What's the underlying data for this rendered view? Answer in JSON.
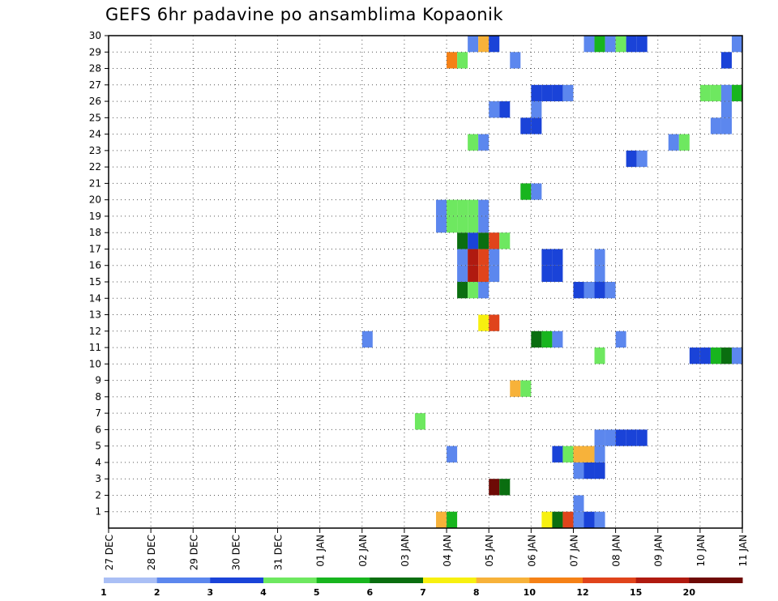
{
  "chart_data": {
    "type": "heatmap",
    "title": "GEFS 6hr padavine po ansamblima Kopaonik",
    "x_tick_labels": [
      "27 DEC",
      "28 DEC",
      "29 DEC",
      "30 DEC",
      "31 DEC",
      "01 JAN",
      "02 JAN",
      "03 JAN",
      "04 JAN",
      "05 JAN",
      "06 JAN",
      "07 JAN",
      "08 JAN",
      "09 JAN",
      "10 JAN",
      "11 JAN"
    ],
    "y_tick_labels": [
      "1",
      "2",
      "3",
      "4",
      "5",
      "6",
      "7",
      "8",
      "9",
      "10",
      "11",
      "12",
      "13",
      "14",
      "15",
      "16",
      "17",
      "18",
      "19",
      "20",
      "21",
      "22",
      "23",
      "24",
      "25",
      "26",
      "27",
      "28",
      "29",
      "30"
    ],
    "xlim_days": [
      0,
      15
    ],
    "ylim": [
      0,
      30
    ],
    "time_step_hours": 6,
    "grid": true,
    "colorbar": {
      "labels": [
        "1",
        "2",
        "3",
        "4",
        "5",
        "6",
        "7",
        "8",
        "10",
        "12",
        "15",
        "20"
      ],
      "colors": [
        "#aabff5",
        "#5c87ee",
        "#1a43d8",
        "#6ee860",
        "#18b51e",
        "#0a6e10",
        "#f7f010",
        "#f7b23a",
        "#f58116",
        "#e0441b",
        "#b01a10",
        "#6e0a06"
      ]
    },
    "cells": [
      {
        "day": 7.75,
        "m": 1,
        "v": 7
      },
      {
        "day": 8.0,
        "m": 1,
        "v": 4
      },
      {
        "day": 10.25,
        "m": 1,
        "v": 6
      },
      {
        "day": 10.5,
        "m": 1,
        "v": 5
      },
      {
        "day": 10.75,
        "m": 1,
        "v": 9
      },
      {
        "day": 11.0,
        "m": 1,
        "v": 1
      },
      {
        "day": 11.25,
        "m": 1,
        "v": 2
      },
      {
        "day": 11.5,
        "m": 1,
        "v": 1
      },
      {
        "day": 11.0,
        "m": 2,
        "v": 1
      },
      {
        "day": 9.0,
        "m": 3,
        "v": 11
      },
      {
        "day": 9.25,
        "m": 3,
        "v": 5
      },
      {
        "day": 11.0,
        "m": 4,
        "v": 1
      },
      {
        "day": 11.25,
        "m": 4,
        "v": 2
      },
      {
        "day": 11.5,
        "m": 4,
        "v": 2
      },
      {
        "day": 8.0,
        "m": 5,
        "v": 1
      },
      {
        "day": 10.5,
        "m": 5,
        "v": 2
      },
      {
        "day": 10.75,
        "m": 5,
        "v": 3
      },
      {
        "day": 11.0,
        "m": 5,
        "v": 7
      },
      {
        "day": 11.25,
        "m": 5,
        "v": 7
      },
      {
        "day": 11.5,
        "m": 5,
        "v": 1
      },
      {
        "day": 11.5,
        "m": 6,
        "v": 1
      },
      {
        "day": 11.75,
        "m": 6,
        "v": 1
      },
      {
        "day": 12.0,
        "m": 6,
        "v": 2
      },
      {
        "day": 12.25,
        "m": 6,
        "v": 2
      },
      {
        "day": 12.5,
        "m": 6,
        "v": 2
      },
      {
        "day": 15.0,
        "m": 6,
        "v": 1
      },
      {
        "day": 7.25,
        "m": 7,
        "v": 3
      },
      {
        "day": 9.5,
        "m": 9,
        "v": 7
      },
      {
        "day": 9.75,
        "m": 9,
        "v": 3
      },
      {
        "day": 11.5,
        "m": 11,
        "v": 3
      },
      {
        "day": 13.75,
        "m": 11,
        "v": 2
      },
      {
        "day": 14.0,
        "m": 11,
        "v": 2
      },
      {
        "day": 14.25,
        "m": 11,
        "v": 4
      },
      {
        "day": 14.5,
        "m": 11,
        "v": 5
      },
      {
        "day": 14.75,
        "m": 11,
        "v": 1
      },
      {
        "day": 6.0,
        "m": 12,
        "v": 1
      },
      {
        "day": 10.0,
        "m": 12,
        "v": 5
      },
      {
        "day": 10.25,
        "m": 12,
        "v": 4
      },
      {
        "day": 10.5,
        "m": 12,
        "v": 1
      },
      {
        "day": 12.0,
        "m": 12,
        "v": 1
      },
      {
        "day": 8.75,
        "m": 13,
        "v": 6
      },
      {
        "day": 9.0,
        "m": 13,
        "v": 9
      },
      {
        "day": 8.25,
        "m": 15,
        "v": 5
      },
      {
        "day": 8.5,
        "m": 15,
        "v": 3
      },
      {
        "day": 8.75,
        "m": 15,
        "v": 1
      },
      {
        "day": 11.0,
        "m": 15,
        "v": 2
      },
      {
        "day": 11.25,
        "m": 15,
        "v": 1
      },
      {
        "day": 11.5,
        "m": 15,
        "v": 2
      },
      {
        "day": 11.75,
        "m": 15,
        "v": 1
      },
      {
        "day": 8.25,
        "m": 16,
        "v": 1
      },
      {
        "day": 8.5,
        "m": 16,
        "v": 10
      },
      {
        "day": 8.75,
        "m": 16,
        "v": 9
      },
      {
        "day": 9.0,
        "m": 16,
        "v": 1
      },
      {
        "day": 10.25,
        "m": 16,
        "v": 2
      },
      {
        "day": 10.5,
        "m": 16,
        "v": 2
      },
      {
        "day": 11.5,
        "m": 16,
        "v": 1
      },
      {
        "day": 8.25,
        "m": 17,
        "v": 1
      },
      {
        "day": 8.5,
        "m": 17,
        "v": 10
      },
      {
        "day": 8.75,
        "m": 17,
        "v": 9
      },
      {
        "day": 9.0,
        "m": 17,
        "v": 1
      },
      {
        "day": 10.25,
        "m": 17,
        "v": 2
      },
      {
        "day": 10.5,
        "m": 17,
        "v": 2
      },
      {
        "day": 11.5,
        "m": 17,
        "v": 1
      },
      {
        "day": 8.25,
        "m": 18,
        "v": 5
      },
      {
        "day": 8.5,
        "m": 18,
        "v": 2
      },
      {
        "day": 8.75,
        "m": 18,
        "v": 5
      },
      {
        "day": 9.0,
        "m": 18,
        "v": 9
      },
      {
        "day": 9.25,
        "m": 18,
        "v": 3
      },
      {
        "day": 7.75,
        "m": 19,
        "v": 1
      },
      {
        "day": 8.0,
        "m": 19,
        "v": 3
      },
      {
        "day": 8.25,
        "m": 19,
        "v": 3
      },
      {
        "day": 8.5,
        "m": 19,
        "v": 3
      },
      {
        "day": 8.75,
        "m": 19,
        "v": 1
      },
      {
        "day": 7.75,
        "m": 20,
        "v": 1
      },
      {
        "day": 8.0,
        "m": 20,
        "v": 3
      },
      {
        "day": 8.25,
        "m": 20,
        "v": 3
      },
      {
        "day": 8.5,
        "m": 20,
        "v": 3
      },
      {
        "day": 8.75,
        "m": 20,
        "v": 1
      },
      {
        "day": 9.75,
        "m": 21,
        "v": 4
      },
      {
        "day": 10.0,
        "m": 21,
        "v": 1
      },
      {
        "day": 12.25,
        "m": 23,
        "v": 2
      },
      {
        "day": 12.5,
        "m": 23,
        "v": 1
      },
      {
        "day": 8.5,
        "m": 24,
        "v": 3
      },
      {
        "day": 8.75,
        "m": 24,
        "v": 1
      },
      {
        "day": 13.25,
        "m": 24,
        "v": 1
      },
      {
        "day": 13.5,
        "m": 24,
        "v": 3
      },
      {
        "day": 9.75,
        "m": 25,
        "v": 2
      },
      {
        "day": 10.0,
        "m": 25,
        "v": 2
      },
      {
        "day": 14.25,
        "m": 25,
        "v": 1
      },
      {
        "day": 14.5,
        "m": 25,
        "v": 1
      },
      {
        "day": 9.0,
        "m": 26,
        "v": 1
      },
      {
        "day": 9.25,
        "m": 26,
        "v": 2
      },
      {
        "day": 10.0,
        "m": 26,
        "v": 1
      },
      {
        "day": 14.5,
        "m": 26,
        "v": 1
      },
      {
        "day": 10.0,
        "m": 27,
        "v": 2
      },
      {
        "day": 10.25,
        "m": 27,
        "v": 2
      },
      {
        "day": 10.5,
        "m": 27,
        "v": 2
      },
      {
        "day": 10.75,
        "m": 27,
        "v": 1
      },
      {
        "day": 14.0,
        "m": 27,
        "v": 3
      },
      {
        "day": 14.25,
        "m": 27,
        "v": 3
      },
      {
        "day": 14.5,
        "m": 27,
        "v": 1
      },
      {
        "day": 14.75,
        "m": 27,
        "v": 4
      },
      {
        "day": 8.0,
        "m": 29,
        "v": 8
      },
      {
        "day": 8.25,
        "m": 29,
        "v": 3
      },
      {
        "day": 9.5,
        "m": 29,
        "v": 1
      },
      {
        "day": 14.5,
        "m": 29,
        "v": 2
      },
      {
        "day": 8.5,
        "m": 30,
        "v": 1
      },
      {
        "day": 8.75,
        "m": 30,
        "v": 7
      },
      {
        "day": 9.0,
        "m": 30,
        "v": 2
      },
      {
        "day": 11.25,
        "m": 30,
        "v": 1
      },
      {
        "day": 11.5,
        "m": 30,
        "v": 4
      },
      {
        "day": 11.75,
        "m": 30,
        "v": 1
      },
      {
        "day": 12.0,
        "m": 30,
        "v": 3
      },
      {
        "day": 12.25,
        "m": 30,
        "v": 2
      },
      {
        "day": 12.5,
        "m": 30,
        "v": 2
      },
      {
        "day": 14.75,
        "m": 30,
        "v": 1
      },
      {
        "day": 9.0,
        "m": 31,
        "v": 5
      },
      {
        "day": 9.25,
        "m": 31,
        "v": 7
      },
      {
        "day": 9.75,
        "m": 31,
        "v": 2
      },
      {
        "day": 10.0,
        "m": 31,
        "v": 1
      }
    ]
  }
}
